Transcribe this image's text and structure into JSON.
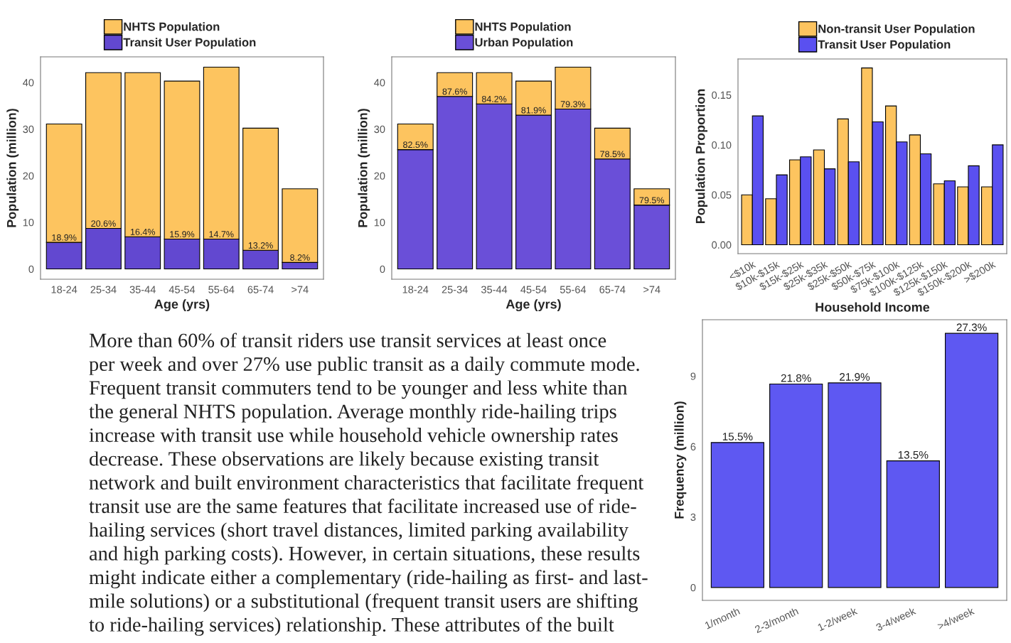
{
  "chart_data": [
    {
      "type": "bar",
      "stacked": true,
      "xlabel": "Age (yrs)",
      "ylabel": "Population (million)",
      "legend": "top",
      "grid": false,
      "categories": [
        "18-24",
        "25-34",
        "35-44",
        "45-54",
        "55-64",
        "65-74",
        ">74"
      ],
      "ylim": [
        -2.2,
        45.5
      ],
      "yticks": [
        0,
        10,
        20,
        30,
        40
      ],
      "series": [
        {
          "name": "Transit User Population",
          "color": "#6248d0",
          "values": [
            5.7,
            8.7,
            6.9,
            6.4,
            6.4,
            4.0,
            1.4
          ]
        },
        {
          "name": "NHTS Population",
          "color": "#fdc45f",
          "values": [
            25.4,
            33.4,
            35.2,
            33.9,
            36.9,
            26.2,
            15.8
          ]
        }
      ],
      "annotations": [
        {
          "text": "18.9%",
          "x": "18-24",
          "y": 5.7
        },
        {
          "text": "20.6%",
          "x": "25-34",
          "y": 8.7
        },
        {
          "text": "16.4%",
          "x": "35-44",
          "y": 6.9
        },
        {
          "text": "15.9%",
          "x": "45-54",
          "y": 6.4
        },
        {
          "text": "14.7%",
          "x": "55-64",
          "y": 6.4
        },
        {
          "text": "13.2%",
          "x": "65-74",
          "y": 4.0
        },
        {
          "text": "8.2%",
          "x": ">74",
          "y": 1.4
        }
      ]
    },
    {
      "type": "bar",
      "stacked": true,
      "xlabel": "Age (yrs)",
      "ylabel": "Population (million)",
      "legend": "top",
      "grid": false,
      "categories": [
        "18-24",
        "25-34",
        "35-44",
        "45-54",
        "55-64",
        "65-74",
        ">74"
      ],
      "ylim": [
        -2.2,
        45.5
      ],
      "yticks": [
        0,
        10,
        20,
        30,
        40
      ],
      "series": [
        {
          "name": "Urban Population",
          "color": "#6a4fd8",
          "values": [
            25.6,
            37.0,
            35.4,
            33.0,
            34.3,
            23.6,
            13.7
          ]
        },
        {
          "name": "NHTS Population",
          "color": "#fdc45f",
          "values": [
            5.5,
            5.1,
            6.7,
            7.3,
            9.0,
            6.6,
            3.5
          ]
        }
      ],
      "annotations": [
        {
          "text": "82.5%",
          "x": "18-24",
          "y": 25.6
        },
        {
          "text": "87.6%",
          "x": "25-34",
          "y": 37.0
        },
        {
          "text": "84.2%",
          "x": "35-44",
          "y": 35.4
        },
        {
          "text": "81.9%",
          "x": "45-54",
          "y": 33.0
        },
        {
          "text": "79.3%",
          "x": "55-64",
          "y": 34.3
        },
        {
          "text": "78.5%",
          "x": "65-74",
          "y": 23.6
        },
        {
          "text": "79.5%",
          "x": ">74",
          "y": 13.7
        }
      ]
    },
    {
      "type": "bar",
      "xlabel": "Household Income",
      "ylabel": "Population Proportion",
      "legend": "top",
      "grid": false,
      "categories": [
        "<$10k",
        "$10k-$15k",
        "$15k-$25k",
        "$25k-$35k",
        "$25k-$50k",
        "$50k-$75k",
        "$75k-$100k",
        "$100k-$125k",
        "$125k-$150k",
        "$150k-$200k",
        ">$200k"
      ],
      "ylim": [
        -0.0089,
        0.186
      ],
      "yticks": [
        {
          "value": 0,
          "label": "0.00"
        },
        0.05,
        {
          "value": 0.1,
          "label": "0.10"
        },
        0.15
      ],
      "series": [
        {
          "name": "Non-transit User Population",
          "color": "#fdc45f",
          "values": [
            0.05,
            0.046,
            0.085,
            0.095,
            0.126,
            0.177,
            0.139,
            0.11,
            0.061,
            0.058,
            0.058
          ]
        },
        {
          "name": "Transit User Population",
          "color": "#5a50f0",
          "values": [
            0.129,
            0.07,
            0.088,
            0.076,
            0.083,
            0.123,
            0.103,
            0.091,
            0.064,
            0.079,
            0.1
          ]
        }
      ]
    },
    {
      "type": "bar",
      "ylabel": "Frequency (million)",
      "grid": false,
      "categories": [
        "1/month",
        "2-3/month",
        "1-2/week",
        "3-4/week",
        ">4/week"
      ],
      "ylim": [
        -0.55,
        11.4
      ],
      "yticks": [
        0,
        3,
        6,
        9
      ],
      "series": [
        {
          "color": "#5e58f2",
          "values": [
            6.17,
            8.66,
            8.71,
            5.39,
            10.82
          ]
        }
      ],
      "annotations": [
        {
          "text": "15.5%",
          "x": "1/month",
          "y": 6.17
        },
        {
          "text": "21.8%",
          "x": "2-3/month",
          "y": 8.66
        },
        {
          "text": "21.9%",
          "x": "1-2/week",
          "y": 8.71
        },
        {
          "text": "13.5%",
          "x": "3-4/week",
          "y": 5.39
        },
        {
          "text": "27.3%",
          "x": ">4/week",
          "y": 10.82
        }
      ]
    },
    {
      "type": "other",
      "annotations": [
        "More than 60% of transit riders use transit services at least once",
        "per week and over 27% use public transit as a daily commute mode.",
        "Frequent transit commuters tend to be younger and less white than",
        "the general NHTS population. Average monthly ride-hailing trips",
        "increase with transit use while household vehicle ownership rates",
        "decrease. These observations are likely because existing transit",
        "network and built environment characteristics that facilitate frequent",
        "transit use are the same features that facilitate increased use of ride-",
        "hailing services (short travel distances, limited parking availability",
        "and high parking costs). However, in certain situations, these results",
        "might indicate either a complementary (ride-hailing as first- and last-",
        "mile solutions) or a substitutional (frequent transit users are shifting",
        "to ride-hailing services) relationship. These attributes of the built"
      ]
    }
  ]
}
